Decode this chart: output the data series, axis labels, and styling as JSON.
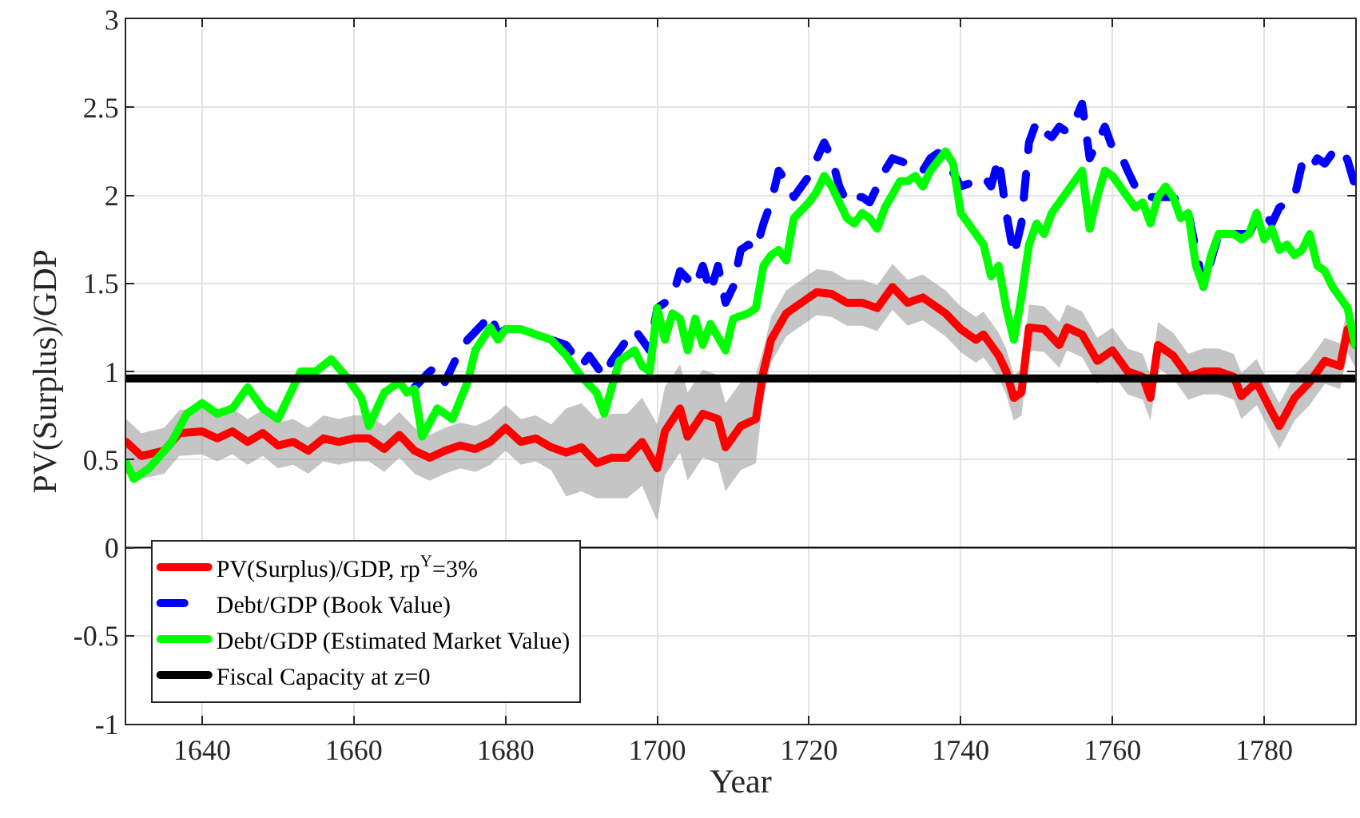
{
  "chart_data": {
    "type": "line",
    "xlabel": "Year",
    "ylabel": "PV(Surplus)/GDP",
    "xlim": [
      1630,
      1792
    ],
    "xticks": [
      1640,
      1660,
      1680,
      1700,
      1720,
      1740,
      1760,
      1780
    ],
    "ylim": [
      -1,
      3
    ],
    "yticks": [
      -1,
      -0.5,
      0,
      0.5,
      1,
      1.5,
      2,
      2.5,
      3
    ],
    "grid": true,
    "legend": "bottom left",
    "series": [
      {
        "name": "PV(Surplus)/GDP, rp$^{Y}$=3%",
        "color": "#ff0000",
        "line_style": "solid",
        "x": [
          1630,
          1632,
          1635,
          1637,
          1640,
          1642,
          1644,
          1646,
          1648,
          1650,
          1652,
          1654,
          1656,
          1658,
          1660,
          1662,
          1664,
          1666,
          1668,
          1670,
          1672,
          1674,
          1676,
          1678,
          1680,
          1682,
          1684,
          1686,
          1688,
          1690,
          1692,
          1694,
          1696,
          1698,
          1700,
          1701,
          1703,
          1704,
          1706,
          1708,
          1709,
          1711,
          1713,
          1714,
          1715,
          1717,
          1719,
          1721,
          1723,
          1725,
          1727,
          1729,
          1731,
          1733,
          1735,
          1737,
          1738,
          1740,
          1742,
          1743,
          1745,
          1746,
          1747,
          1748,
          1749,
          1751,
          1753,
          1754,
          1756,
          1758,
          1760,
          1762,
          1764,
          1765,
          1766,
          1768,
          1770,
          1772,
          1774,
          1776,
          1777,
          1779,
          1781,
          1782,
          1784,
          1786,
          1788,
          1790,
          1791,
          1792
        ],
        "values": [
          0.6,
          0.52,
          0.55,
          0.65,
          0.66,
          0.62,
          0.66,
          0.6,
          0.65,
          0.58,
          0.6,
          0.55,
          0.62,
          0.6,
          0.62,
          0.62,
          0.56,
          0.64,
          0.55,
          0.51,
          0.55,
          0.58,
          0.56,
          0.6,
          0.68,
          0.6,
          0.62,
          0.57,
          0.54,
          0.57,
          0.48,
          0.51,
          0.51,
          0.6,
          0.45,
          0.66,
          0.79,
          0.63,
          0.76,
          0.73,
          0.57,
          0.69,
          0.73,
          1.0,
          1.18,
          1.33,
          1.39,
          1.45,
          1.44,
          1.39,
          1.39,
          1.36,
          1.48,
          1.39,
          1.42,
          1.36,
          1.33,
          1.24,
          1.18,
          1.21,
          1.09,
          1.0,
          0.85,
          0.88,
          1.25,
          1.24,
          1.15,
          1.25,
          1.21,
          1.06,
          1.12,
          1.0,
          0.97,
          0.85,
          1.15,
          1.09,
          0.97,
          1.0,
          1.0,
          0.97,
          0.86,
          0.94,
          0.77,
          0.69,
          0.85,
          0.94,
          1.06,
          1.03,
          1.24,
          1.15
        ],
        "lower": [
          0.47,
          0.39,
          0.42,
          0.52,
          0.53,
          0.49,
          0.53,
          0.47,
          0.52,
          0.45,
          0.47,
          0.42,
          0.49,
          0.47,
          0.49,
          0.49,
          0.43,
          0.51,
          0.42,
          0.38,
          0.42,
          0.45,
          0.43,
          0.47,
          0.55,
          0.47,
          0.49,
          0.44,
          0.29,
          0.32,
          0.28,
          0.28,
          0.28,
          0.35,
          0.15,
          0.41,
          0.54,
          0.38,
          0.51,
          0.48,
          0.32,
          0.44,
          0.48,
          0.87,
          1.05,
          1.2,
          1.26,
          1.32,
          1.31,
          1.26,
          1.26,
          1.23,
          1.35,
          1.26,
          1.29,
          1.23,
          1.2,
          1.11,
          1.05,
          1.08,
          0.96,
          0.87,
          0.72,
          0.75,
          1.12,
          1.11,
          1.02,
          1.12,
          1.08,
          0.93,
          0.99,
          0.87,
          0.84,
          0.72,
          1.02,
          0.96,
          0.84,
          0.87,
          0.87,
          0.84,
          0.73,
          0.81,
          0.64,
          0.56,
          0.72,
          0.81,
          0.93,
          0.9,
          1.11,
          1.02
        ],
        "upper": [
          0.73,
          0.65,
          0.68,
          0.78,
          0.79,
          0.75,
          0.79,
          0.73,
          0.78,
          0.71,
          0.73,
          0.68,
          0.75,
          0.73,
          0.75,
          0.75,
          0.69,
          0.77,
          0.68,
          0.64,
          0.68,
          0.71,
          0.69,
          0.73,
          0.81,
          0.73,
          0.75,
          0.7,
          0.79,
          0.82,
          0.73,
          0.76,
          0.76,
          0.85,
          0.7,
          0.91,
          1.04,
          0.88,
          1.01,
          0.98,
          0.82,
          0.94,
          0.98,
          1.13,
          1.31,
          1.46,
          1.52,
          1.58,
          1.57,
          1.52,
          1.52,
          1.49,
          1.61,
          1.52,
          1.55,
          1.49,
          1.46,
          1.37,
          1.31,
          1.34,
          1.22,
          1.13,
          0.98,
          1.01,
          1.38,
          1.37,
          1.28,
          1.38,
          1.34,
          1.19,
          1.25,
          1.13,
          1.1,
          0.98,
          1.28,
          1.22,
          1.1,
          1.13,
          1.13,
          1.1,
          0.99,
          1.07,
          0.9,
          0.82,
          0.98,
          1.07,
          1.19,
          1.16,
          1.37,
          1.28
        ]
      },
      {
        "name": "Debt/GDP (Book Value)",
        "color": "#0000ff",
        "line_style": "dashed",
        "x": [
          1668,
          1670,
          1671,
          1672,
          1674,
          1675,
          1677,
          1678,
          1679,
          1680,
          1682,
          1684,
          1686,
          1688,
          1690,
          1691,
          1693,
          1694,
          1696,
          1697,
          1699,
          1700,
          1702,
          1703,
          1705,
          1706,
          1707,
          1708,
          1709,
          1710,
          1711,
          1712,
          1713,
          1714,
          1715,
          1716,
          1717,
          1718,
          1720,
          1722,
          1723,
          1724,
          1725,
          1726,
          1727,
          1728,
          1729,
          1730,
          1731,
          1733,
          1734,
          1735,
          1736,
          1737,
          1738,
          1740,
          1742,
          1743,
          1744,
          1745,
          1746,
          1747,
          1748,
          1749,
          1750,
          1751,
          1752,
          1753,
          1754,
          1755,
          1756,
          1757,
          1758,
          1759,
          1760,
          1761,
          1762,
          1763,
          1764,
          1766,
          1768,
          1770,
          1772,
          1774,
          1776,
          1778,
          1779,
          1780,
          1781,
          1782,
          1783,
          1784,
          1785,
          1786,
          1787,
          1788,
          1789,
          1790,
          1791,
          1792
        ],
        "values": [
          0.91,
          1.0,
          1.03,
          0.94,
          1.12,
          1.18,
          1.27,
          1.33,
          1.21,
          1.24,
          null,
          null,
          1.18,
          1.15,
          1.03,
          1.09,
          0.97,
          1.06,
          1.18,
          1.24,
          1.12,
          1.36,
          1.42,
          1.57,
          1.48,
          1.6,
          1.45,
          1.6,
          1.39,
          1.48,
          1.69,
          1.72,
          1.69,
          1.84,
          1.96,
          2.14,
          2.08,
          1.99,
          2.11,
          2.3,
          2.21,
          2.05,
          1.96,
          1.99,
          1.99,
          1.96,
          2.05,
          2.14,
          2.21,
          2.18,
          2.14,
          2.14,
          2.21,
          2.24,
          2.21,
          2.05,
          2.08,
          2.11,
          2.05,
          2.21,
          1.9,
          1.66,
          1.84,
          2.3,
          2.42,
          2.36,
          2.33,
          2.39,
          2.36,
          2.42,
          2.52,
          2.21,
          2.3,
          2.39,
          2.27,
          2.24,
          2.14,
          2.05,
          1.99,
          1.99,
          1.99,
          1.9,
          1.48,
          1.78,
          1.78,
          1.78,
          1.87,
          1.9,
          1.84,
          1.93,
          1.96,
          1.99,
          2.18,
          2.14,
          2.21,
          2.18,
          2.24,
          2.27,
          2.2,
          2.05
        ]
      },
      {
        "name": "Debt/GDP (Estimated Market Value)",
        "color": "#00ff00",
        "line_style": "solid",
        "x": [
          1630,
          1631,
          1633,
          1636,
          1638,
          1640,
          1642,
          1644,
          1646,
          1648,
          1650,
          1652,
          1653,
          1655,
          1657,
          1659,
          1661,
          1662,
          1664,
          1666,
          1667,
          1668,
          1669,
          1671,
          1673,
          1675,
          1676,
          1678,
          1679,
          1680,
          1682,
          1684,
          1686,
          1688,
          1690,
          1692,
          1693,
          1695,
          1697,
          1698,
          1699,
          1700,
          1701,
          1702,
          1703,
          1704,
          1705,
          1706,
          1707,
          1709,
          1710,
          1712,
          1713,
          1714,
          1715,
          1716,
          1717,
          1718,
          1720,
          1721,
          1722,
          1723,
          1724,
          1725,
          1726,
          1727,
          1728,
          1729,
          1730,
          1732,
          1733,
          1734,
          1735,
          1736,
          1738,
          1739,
          1740,
          1742,
          1743,
          1744,
          1745,
          1746,
          1747,
          1748,
          1749,
          1750,
          1751,
          1752,
          1753,
          1754,
          1755,
          1756,
          1757,
          1758,
          1759,
          1760,
          1762,
          1763,
          1764,
          1765,
          1766,
          1767,
          1768,
          1769,
          1770,
          1771,
          1772,
          1773,
          1774,
          1775,
          1776,
          1777,
          1778,
          1779,
          1780,
          1781,
          1782,
          1783,
          1784,
          1785,
          1786,
          1787,
          1788,
          1789,
          1790,
          1791,
          1792
        ],
        "values": [
          0.48,
          0.39,
          0.45,
          0.6,
          0.76,
          0.82,
          0.76,
          0.79,
          0.91,
          0.79,
          0.73,
          0.91,
          1.0,
          1.0,
          1.07,
          0.97,
          0.85,
          0.69,
          0.88,
          0.94,
          0.88,
          0.9,
          0.63,
          0.79,
          0.73,
          0.94,
          1.12,
          1.25,
          1.18,
          1.24,
          1.24,
          1.21,
          1.18,
          1.09,
          0.97,
          0.88,
          0.76,
          1.06,
          1.12,
          1.03,
          1.0,
          1.36,
          1.18,
          1.33,
          1.3,
          1.12,
          1.3,
          1.15,
          1.27,
          1.12,
          1.3,
          1.33,
          1.36,
          1.6,
          1.66,
          1.69,
          1.63,
          1.87,
          1.96,
          2.02,
          2.11,
          2.05,
          1.96,
          1.87,
          1.84,
          1.9,
          1.87,
          1.81,
          1.93,
          2.08,
          2.08,
          2.11,
          2.05,
          2.14,
          2.25,
          2.18,
          1.9,
          1.78,
          1.72,
          1.54,
          1.6,
          1.36,
          1.18,
          1.42,
          1.72,
          1.84,
          1.78,
          1.9,
          1.96,
          2.02,
          2.08,
          2.14,
          1.81,
          1.99,
          2.14,
          2.11,
          1.99,
          1.93,
          1.96,
          1.84,
          1.99,
          2.05,
          1.99,
          1.87,
          1.9,
          1.6,
          1.48,
          1.66,
          1.78,
          1.78,
          1.78,
          1.75,
          1.78,
          1.9,
          1.75,
          1.81,
          1.69,
          1.72,
          1.66,
          1.69,
          1.78,
          1.6,
          1.57,
          1.48,
          1.42,
          1.36,
          1.15
        ]
      },
      {
        "name": "Fiscal Capacity at z=0",
        "color": "#000000",
        "line_style": "solid",
        "x": [
          1630,
          1792
        ],
        "values": [
          0.96,
          0.96
        ]
      }
    ],
    "ref_lines": [
      {
        "axis": "y",
        "value": 0,
        "color": "#000000",
        "line_style": "solid"
      }
    ]
  }
}
